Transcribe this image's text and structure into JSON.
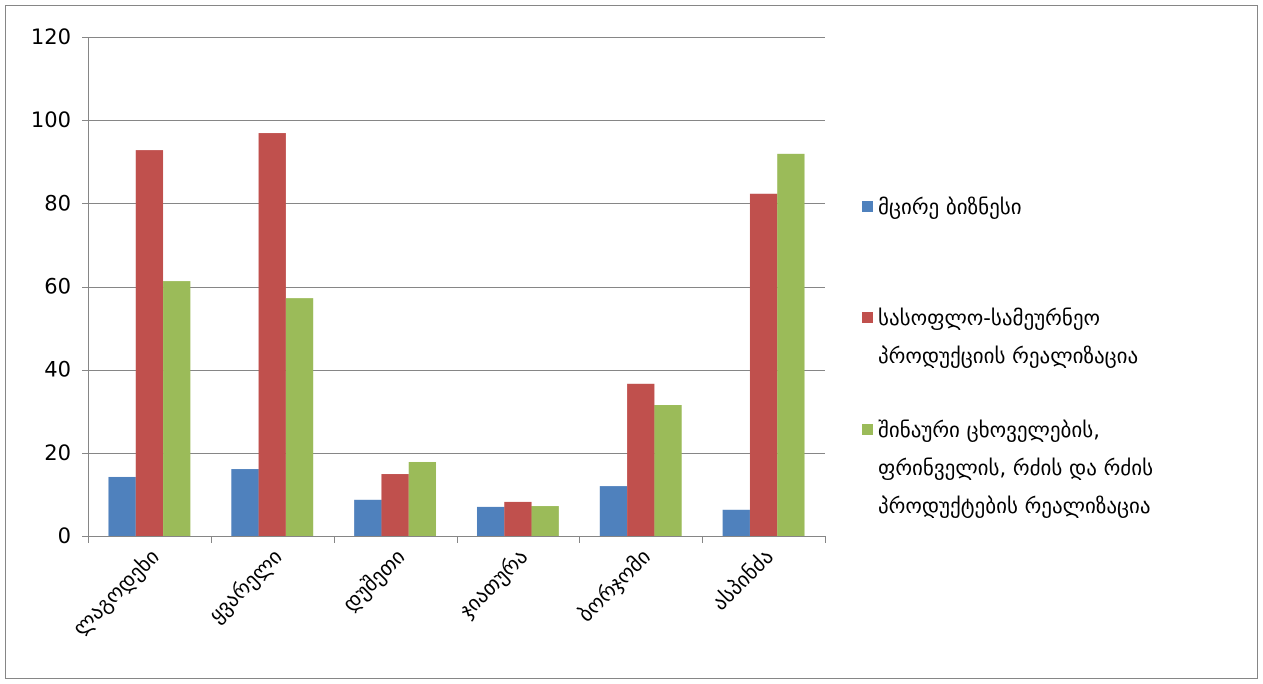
{
  "chart_data": {
    "type": "bar",
    "categories": [
      "ლაგოდეხი",
      "ყვარელი",
      "დუშეთი",
      "ჯიათურა",
      "ბორჯომი",
      "ასპინძა"
    ],
    "series": [
      {
        "name": "მცირე ბიზნესი",
        "color": "#4F81BD",
        "values": [
          14.2,
          16.1,
          8.7,
          7.0,
          12.0,
          6.3
        ]
      },
      {
        "name": "სასოფლო-სამეურნეო პროდუქციის რეალიზაცია",
        "color": "#C0504D",
        "values": [
          92.8,
          96.9,
          14.9,
          8.2,
          36.6,
          82.3
        ]
      },
      {
        "name": "შინაური ცხოველების, ფრინველის, რძის და რძის პროდუქტების რეალიზაცია",
        "color": "#9BBB59",
        "values": [
          61.3,
          57.2,
          17.8,
          7.2,
          31.5,
          91.9
        ]
      }
    ],
    "ylim": [
      0,
      120
    ],
    "yticks": [
      0,
      20,
      40,
      60,
      80,
      100,
      120
    ],
    "grid": true,
    "legend": "right"
  }
}
